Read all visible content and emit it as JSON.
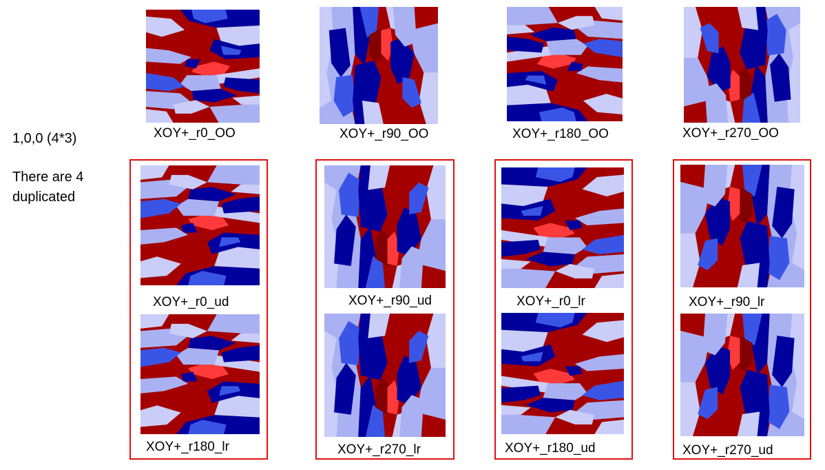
{
  "side_label": {
    "line1": "1,0,0 (4*3)",
    "line2": "There are 4",
    "line3": "duplicated"
  },
  "colors": {
    "dark_red": "#a50000",
    "bright_red": "#ff3a3a",
    "maroon": "#830000",
    "navy": "#00009c",
    "blue": "#3a55e6",
    "light_blue": "#a9b1f3",
    "pale_blue": "#c9cdf8",
    "box_border": "#e01010"
  },
  "top_row": [
    {
      "caption": "XOY+_r0_OO"
    },
    {
      "caption": "XOY+_r90_OO"
    },
    {
      "caption": "XOY+_r180_OO"
    },
    {
      "caption": "XOY+_r270_OO"
    }
  ],
  "groups": [
    {
      "upper": "XOY+_r0_ud",
      "lower": "XOY+_r180_lr"
    },
    {
      "upper": "XOY+_r90_ud",
      "lower": "XOY+_r270_lr"
    },
    {
      "upper": "XOY+_r0_lr",
      "lower": "XOY+_r180_ud"
    },
    {
      "upper": "XOY+_r90_lr",
      "lower": "XOY+_r270_ud"
    }
  ]
}
